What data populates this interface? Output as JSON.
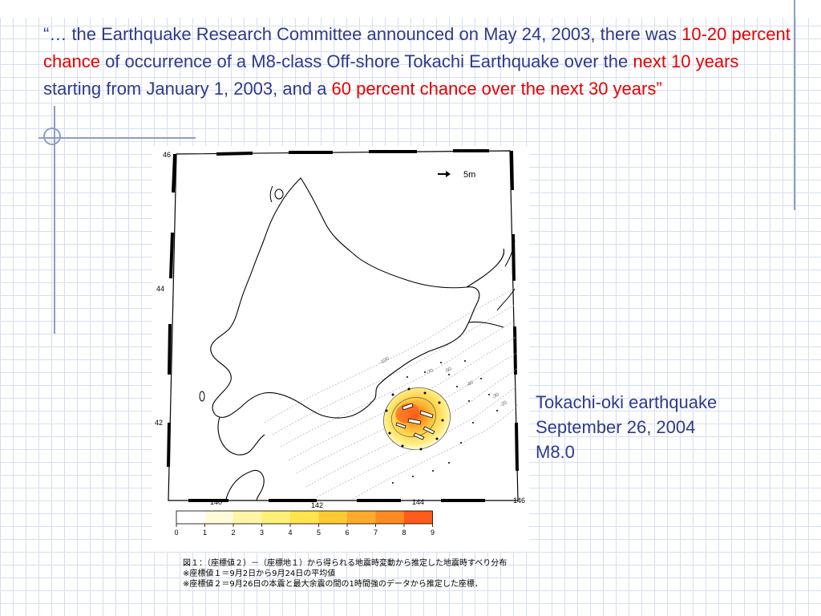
{
  "slide": {
    "quote_segments": [
      {
        "text": "“… the Earthquake Research Committee announced on May 24, 2003, there was ",
        "hl": false
      },
      {
        "text": "10-20 percent chance",
        "hl": true
      },
      {
        "text": " of occurrence of a M8-class Off-shore Tokachi Earthquake over the ",
        "hl": false
      },
      {
        "text": "next 10 years",
        "hl": true
      },
      {
        "text": " starting from January 1, 2003, and a ",
        "hl": false
      },
      {
        "text": "60 percent chance over the next 30 years”",
        "hl": true
      }
    ],
    "caption": {
      "line1": "Tokachi-oki earthquake",
      "line2": "September 26, 2004",
      "line3": "M8.0"
    },
    "colors": {
      "text": "#2e3a8c",
      "highlight": "#e60000",
      "grid": "#d7deef",
      "rule": "#8f9cc9"
    }
  },
  "map": {
    "lat_labels": [
      "46",
      "44",
      "42"
    ],
    "lon_labels": [
      "140",
      "142",
      "144",
      "146"
    ],
    "vector_scale_label": "5m",
    "contour_labels": [
      "-100",
      "-70",
      "-50",
      "-40",
      "-30",
      "-20"
    ],
    "colorbar": {
      "ticks": [
        "0",
        "1",
        "2",
        "3",
        "4",
        "5",
        "6",
        "7",
        "8",
        "9"
      ],
      "colors": [
        "#ffffff",
        "#fffbd8",
        "#fff5a8",
        "#fff07a",
        "#ffe34f",
        "#ffc934",
        "#ffaa2a",
        "#ff8a22",
        "#ff5b1a"
      ]
    },
    "note_lines": [
      "図１：（座標値２）－（座標地１）から得られる地震時変動から推定した地震時すべり分布",
      "※座標値１＝9月2日から9月24日の平均値",
      "※座標値２＝9月26日の本震と最大余震の間の1時間強のデータから推定した座標．"
    ]
  }
}
